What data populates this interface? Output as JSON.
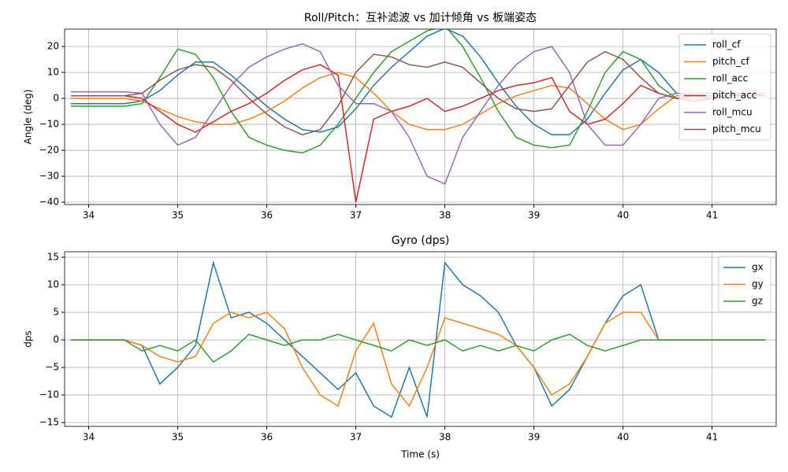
{
  "chart_data": [
    {
      "type": "line",
      "title": "Roll/Pitch：互补滤波 vs 加计倾角 vs 板端姿态",
      "y_label": "Angle (deg)",
      "x": [
        33.8,
        34.0,
        34.2,
        34.4,
        34.6,
        34.8,
        35.0,
        35.2,
        35.4,
        35.6,
        35.8,
        36.0,
        36.2,
        36.4,
        36.6,
        36.8,
        37.0,
        37.2,
        37.4,
        37.6,
        37.8,
        38.0,
        38.2,
        38.4,
        38.6,
        38.8,
        39.0,
        39.2,
        39.4,
        39.6,
        39.8,
        40.0,
        40.2,
        40.4,
        40.6,
        40.8,
        41.0,
        41.2,
        41.4,
        41.6
      ],
      "xlim": [
        33.73,
        41.72
      ],
      "xticks": [
        34,
        35,
        36,
        37,
        38,
        39,
        40,
        41
      ],
      "ylim": [
        -40.9,
        26.7
      ],
      "yticks": [
        {
          "value": -40,
          "label": "−40"
        },
        {
          "value": -30,
          "label": "−30"
        },
        {
          "value": -20,
          "label": "−20"
        },
        {
          "value": -10,
          "label": "−10"
        },
        0,
        10,
        20
      ],
      "grid": true,
      "legend": "upper right",
      "series": [
        {
          "name": "roll_cf",
          "color": "#1f77b4",
          "values": [
            -2,
            -2,
            -2,
            -2,
            -1,
            3,
            9,
            14,
            14,
            9,
            3,
            -3,
            -8,
            -12,
            -13,
            -11,
            -4,
            5,
            12,
            18,
            24,
            27,
            24,
            16,
            6,
            -3,
            -10,
            -14,
            -14,
            -8,
            2,
            11,
            15,
            10,
            2,
            1,
            1,
            1,
            1,
            1
          ]
        },
        {
          "name": "pitch_cf",
          "color": "#ff7f0e",
          "values": [
            0,
            0,
            0,
            0,
            -1,
            -4,
            -7,
            -9,
            -10,
            -10,
            -8,
            -5,
            -1,
            4,
            8,
            10,
            8,
            2,
            -5,
            -10,
            -12,
            -12,
            -10,
            -6,
            -2,
            1,
            3,
            5,
            4,
            -2,
            -8,
            -12,
            -10,
            -4,
            1,
            1,
            1,
            1,
            1,
            1
          ]
        },
        {
          "name": "roll_acc",
          "color": "#2ca02c",
          "values": [
            -3,
            -3,
            -3,
            -3,
            -2,
            8,
            19,
            17,
            8,
            -5,
            -15,
            -18,
            -20,
            -21,
            -18,
            -10,
            0,
            10,
            18,
            22,
            26,
            28,
            20,
            8,
            -5,
            -15,
            -18,
            -19,
            -18,
            -5,
            10,
            18,
            15,
            5,
            0,
            1,
            0,
            1,
            1,
            1
          ]
        },
        {
          "name": "pitch_acc",
          "color": "#d62728",
          "values": [
            1,
            1,
            1,
            1,
            0,
            -5,
            -10,
            -13,
            -9,
            -5,
            -2,
            2,
            7,
            11,
            13,
            9,
            -40,
            -8,
            -5,
            -3,
            0,
            -5,
            -3,
            0,
            3,
            5,
            6,
            8,
            -5,
            -10,
            -8,
            -2,
            5,
            2,
            0,
            -1,
            0,
            1,
            2,
            1
          ]
        },
        {
          "name": "roll_mcu",
          "color": "#9467bd",
          "values": [
            2.5,
            2.5,
            2.5,
            2.5,
            2,
            -10,
            -18,
            -15,
            -5,
            5,
            12,
            16,
            19,
            21,
            18,
            5,
            -2,
            -2,
            -5,
            -15,
            -30,
            -33,
            -15,
            -5,
            5,
            13,
            18,
            20,
            10,
            -10,
            -18,
            -18,
            -10,
            0,
            2,
            2,
            2,
            2,
            2,
            2
          ]
        },
        {
          "name": "pitch_mcu",
          "color": "#8c564b",
          "values": [
            1,
            1,
            1,
            1,
            2,
            7,
            11,
            13,
            12,
            7,
            0,
            -6,
            -11,
            -14,
            -12,
            -3,
            10,
            17,
            16,
            13,
            12,
            14,
            12,
            6,
            0,
            -4,
            -5,
            -4,
            5,
            14,
            18,
            15,
            8,
            2,
            0,
            1,
            1,
            1,
            1,
            1
          ]
        }
      ]
    },
    {
      "type": "line",
      "title": "Gyro (dps)",
      "y_label": "dps",
      "x_label": "Time (s)",
      "x": [
        33.8,
        34.0,
        34.2,
        34.4,
        34.6,
        34.8,
        35.0,
        35.2,
        35.4,
        35.6,
        35.8,
        36.0,
        36.2,
        36.4,
        36.6,
        36.8,
        37.0,
        37.2,
        37.4,
        37.6,
        37.8,
        38.0,
        38.2,
        38.4,
        38.6,
        38.8,
        39.0,
        39.2,
        39.4,
        39.6,
        39.8,
        40.0,
        40.2,
        40.4,
        40.6,
        40.8,
        41.0,
        41.2,
        41.4,
        41.6
      ],
      "xlim": [
        33.73,
        41.72
      ],
      "xticks": [
        34,
        35,
        36,
        37,
        38,
        39,
        40,
        41
      ],
      "ylim": [
        -15.7,
        16.0
      ],
      "yticks": [
        {
          "value": -15,
          "label": "−15"
        },
        {
          "value": -10,
          "label": "−10"
        },
        {
          "value": -5,
          "label": "−5"
        },
        0,
        5,
        10,
        15
      ],
      "grid": true,
      "legend": "upper right",
      "series": [
        {
          "name": "gx",
          "color": "#1f77b4",
          "values": [
            0,
            0,
            0,
            0,
            -1,
            -8,
            -5,
            -1,
            14,
            4,
            5,
            3,
            0,
            -3,
            -6,
            -9,
            -6,
            -12,
            -14,
            -5,
            -14,
            14,
            10,
            8,
            5,
            -1,
            -5,
            -12,
            -9,
            -3,
            3,
            8,
            10,
            0,
            0,
            0,
            0,
            0,
            0,
            0
          ]
        },
        {
          "name": "gy",
          "color": "#ff7f0e",
          "values": [
            0,
            0,
            0,
            0,
            -1,
            -3,
            -4,
            -3,
            3,
            5,
            4,
            5,
            2,
            -5,
            -10,
            -12,
            -2,
            3,
            -8,
            -12,
            -5,
            4,
            3,
            2,
            1,
            -1,
            -5,
            -10,
            -8,
            -3,
            3,
            5,
            5,
            0,
            0,
            0,
            0,
            0,
            0,
            0
          ]
        },
        {
          "name": "gz",
          "color": "#2ca02c",
          "values": [
            0,
            0,
            0,
            0,
            -2,
            -1,
            -2,
            0,
            -4,
            -2,
            1,
            0,
            -1,
            0,
            0,
            1,
            0,
            -1,
            -2,
            0,
            -1,
            0,
            -2,
            -1,
            -2,
            -1,
            -2,
            0,
            1,
            -1,
            -2,
            -1,
            0,
            0,
            0,
            0,
            0,
            0,
            0,
            0
          ]
        }
      ]
    }
  ]
}
